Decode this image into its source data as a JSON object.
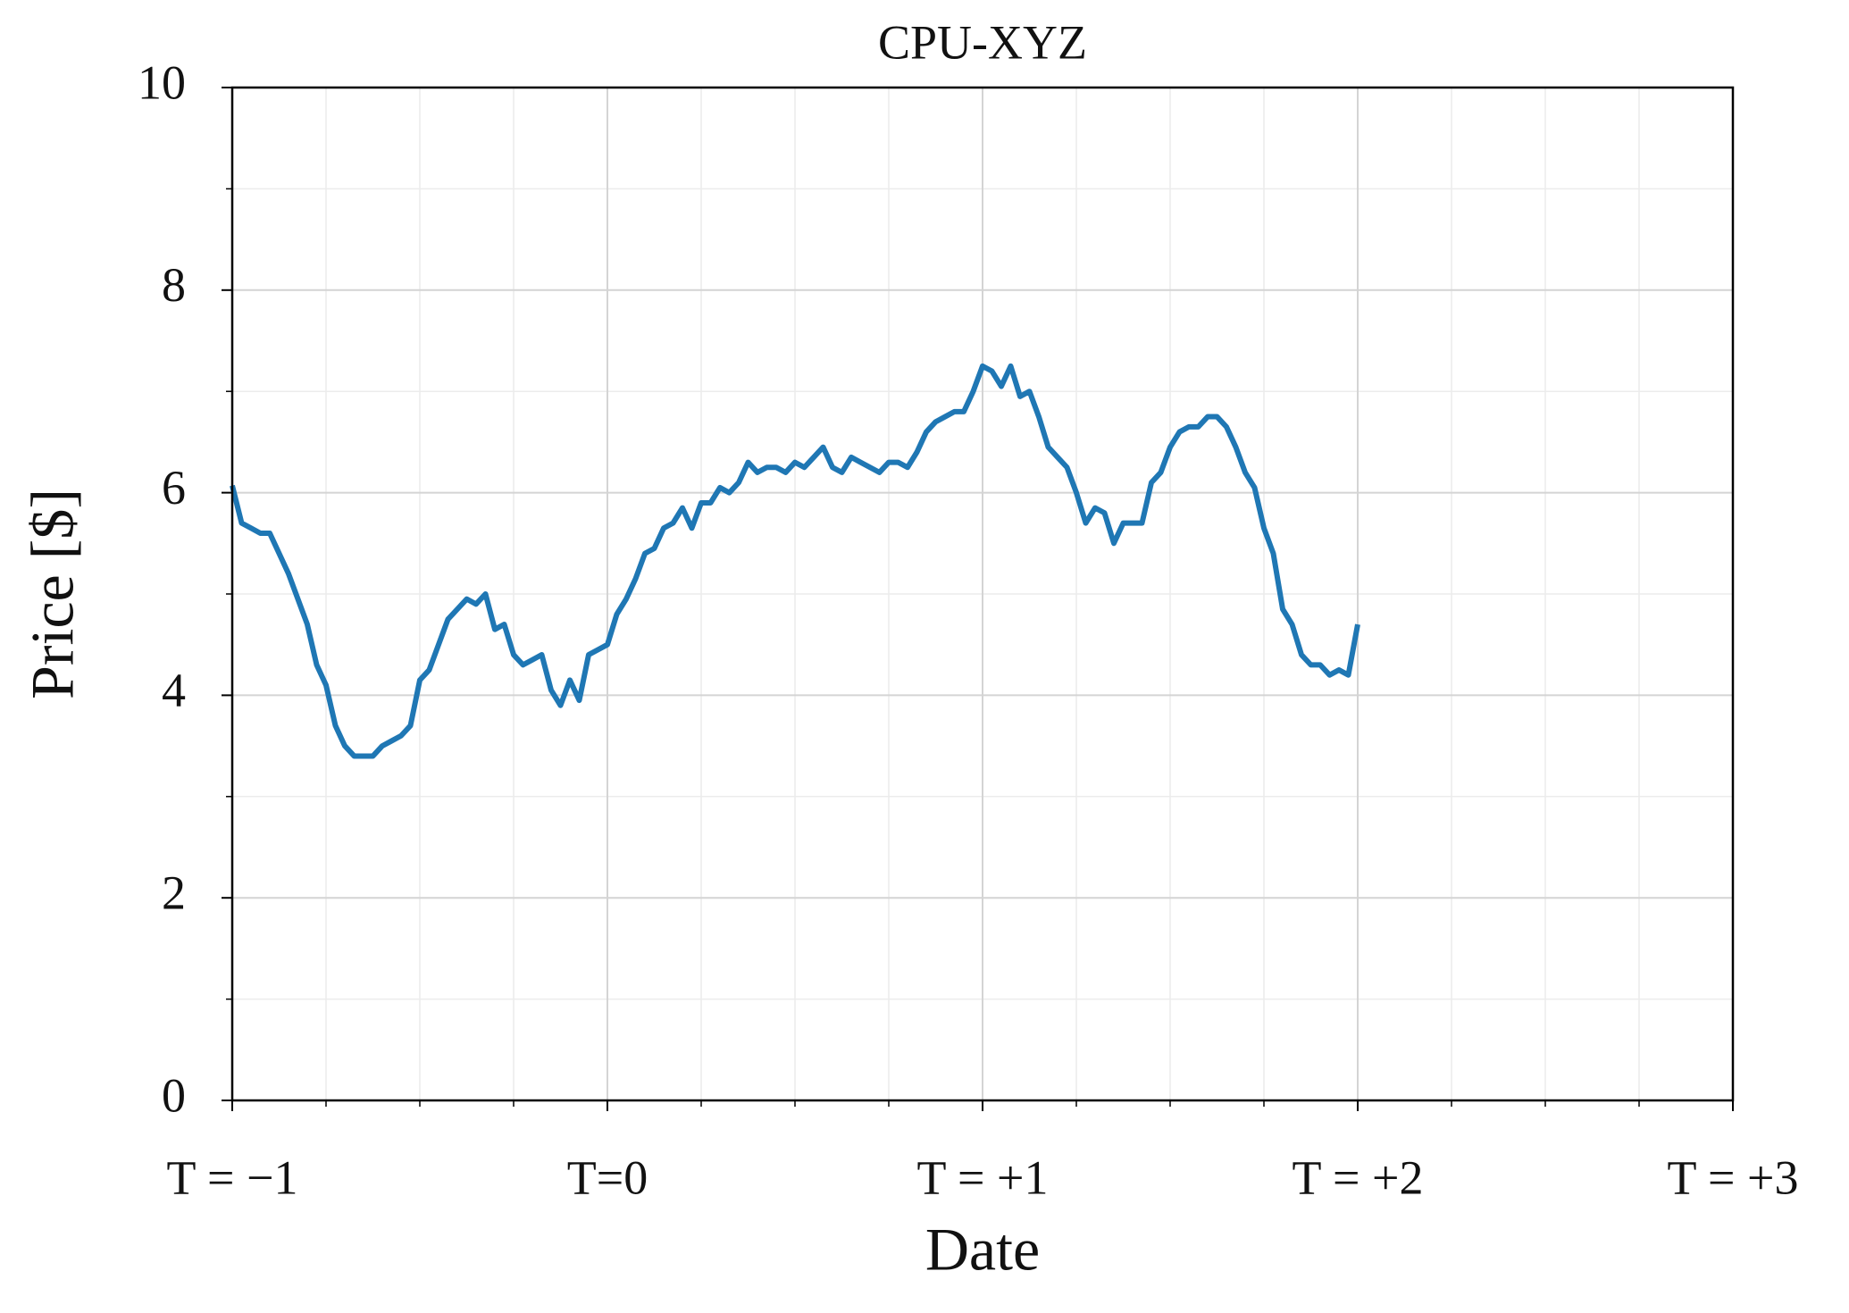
{
  "chart_data": {
    "type": "line",
    "title": "CPU-XYZ",
    "x_label": "Date",
    "y_label": "Price [$]",
    "xlim": [
      -1,
      3
    ],
    "ylim": [
      0,
      10
    ],
    "xticks": [
      {
        "value": -1,
        "label": "T = −1"
      },
      {
        "value": 0,
        "label": "T=0"
      },
      {
        "value": 1,
        "label": "T = +1"
      },
      {
        "value": 2,
        "label": "T = +2"
      },
      {
        "value": 3,
        "label": "T = +3"
      }
    ],
    "yticks": [
      0,
      2,
      4,
      6,
      8,
      10
    ],
    "xminorticks": [
      -0.75,
      -0.5,
      -0.25,
      0.25,
      0.5,
      0.75,
      1.25,
      1.5,
      1.75,
      2.25,
      2.5,
      2.75
    ],
    "yminorticks": [
      1,
      3,
      5,
      7,
      9
    ],
    "grid": true,
    "x": [
      -1,
      -0.975,
      -0.95,
      -0.925,
      -0.9,
      -0.875,
      -0.85,
      -0.825,
      -0.8,
      -0.775,
      -0.75,
      -0.725,
      -0.7,
      -0.675,
      -0.65,
      -0.625,
      -0.6,
      -0.575,
      -0.55,
      -0.525,
      -0.5,
      -0.475,
      -0.45,
      -0.425,
      -0.4,
      -0.375,
      -0.35,
      -0.325,
      -0.3,
      -0.275,
      -0.25,
      -0.225,
      -0.2,
      -0.175,
      -0.15,
      -0.125,
      -0.1,
      -0.075,
      -0.05,
      -0.025,
      0,
      0.025,
      0.05,
      0.075,
      0.1,
      0.125,
      0.15,
      0.175,
      0.2,
      0.225,
      0.25,
      0.275,
      0.3,
      0.325,
      0.35,
      0.375,
      0.4,
      0.425,
      0.45,
      0.475,
      0.5,
      0.525,
      0.55,
      0.575,
      0.6,
      0.625,
      0.65,
      0.675,
      0.7,
      0.725,
      0.75,
      0.775,
      0.8,
      0.825,
      0.85,
      0.875,
      0.9,
      0.925,
      0.95,
      0.975,
      1,
      1.025,
      1.05,
      1.075,
      1.1,
      1.125,
      1.15,
      1.175,
      1.2,
      1.225,
      1.25,
      1.275,
      1.3,
      1.325,
      1.35,
      1.375,
      1.4,
      1.425,
      1.45,
      1.475,
      1.5,
      1.525,
      1.55,
      1.575,
      1.6,
      1.625,
      1.65,
      1.675,
      1.7,
      1.725,
      1.75,
      1.775,
      1.8,
      1.825,
      1.85,
      1.875,
      1.9,
      1.925,
      1.95,
      1.975,
      2
    ],
    "series": [
      {
        "color": "#1f77b4",
        "values": [
          6.07,
          5.7,
          5.65,
          5.6,
          5.6,
          5.4,
          5.2,
          4.95,
          4.7,
          4.3,
          4.1,
          3.7,
          3.5,
          3.4,
          3.4,
          3.4,
          3.5,
          3.55,
          3.6,
          3.7,
          4.15,
          4.25,
          4.5,
          4.75,
          4.85,
          4.95,
          4.9,
          5.0,
          4.65,
          4.7,
          4.4,
          4.3,
          4.35,
          4.4,
          4.05,
          3.9,
          4.15,
          3.95,
          4.4,
          4.45,
          4.5,
          4.8,
          4.95,
          5.15,
          5.4,
          5.45,
          5.65,
          5.7,
          5.85,
          5.65,
          5.9,
          5.9,
          6.05,
          6.0,
          6.1,
          6.3,
          6.2,
          6.25,
          6.25,
          6.2,
          6.3,
          6.25,
          6.35,
          6.45,
          6.25,
          6.2,
          6.35,
          6.3,
          6.25,
          6.2,
          6.3,
          6.3,
          6.25,
          6.4,
          6.6,
          6.7,
          6.75,
          6.8,
          6.8,
          7.0,
          7.25,
          7.2,
          7.05,
          7.25,
          6.95,
          7.0,
          6.75,
          6.45,
          6.35,
          6.25,
          6.0,
          5.7,
          5.85,
          5.8,
          5.5,
          5.7,
          5.7,
          5.7,
          6.1,
          6.2,
          6.45,
          6.6,
          6.65,
          6.65,
          6.75,
          6.75,
          6.65,
          6.45,
          6.2,
          6.05,
          5.65,
          5.4,
          4.85,
          4.7,
          4.4,
          4.3,
          4.3,
          4.2,
          4.25,
          4.2,
          4.7
        ]
      }
    ]
  }
}
